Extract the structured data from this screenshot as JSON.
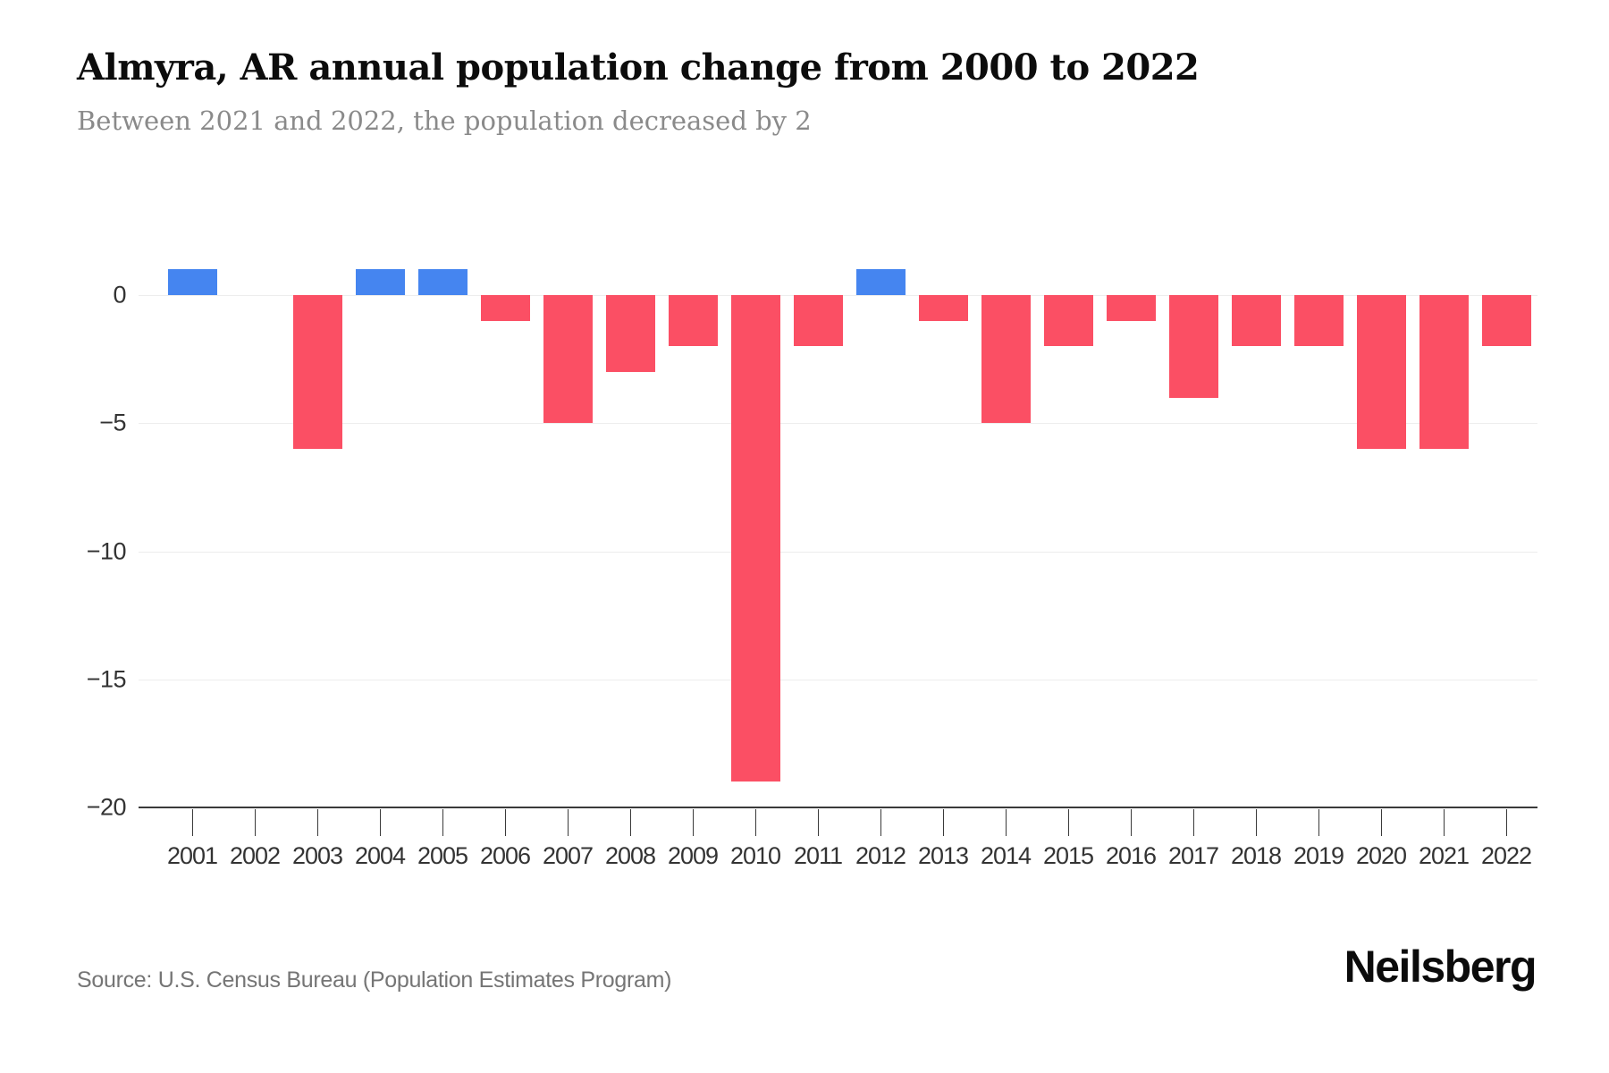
{
  "header": {
    "title": "Almyra, AR annual population change from 2000 to 2022",
    "subtitle": "Between 2021 and 2022, the population decreased by 2"
  },
  "footer": {
    "source": "Source: U.S. Census Bureau (Population Estimates Program)",
    "brand": "Neilsberg"
  },
  "colors": {
    "increase_blue": "#4585F0",
    "decrease_red": "#FB4F64",
    "grid": "#ededed",
    "axis": "#3a3a3a",
    "tick_label": "#333333",
    "subtitle_gray": "#8a8a8a",
    "source_gray": "#757575"
  },
  "chart_data": {
    "type": "bar",
    "title": "Almyra, AR annual population change from 2000 to 2022",
    "subtitle": "Between 2021 and 2022, the population decreased by 2",
    "xlabel": "",
    "ylabel": "",
    "categories": [
      2001,
      2002,
      2003,
      2004,
      2005,
      2006,
      2007,
      2008,
      2009,
      2010,
      2011,
      2012,
      2013,
      2014,
      2015,
      2016,
      2017,
      2018,
      2019,
      2020,
      2021,
      2022
    ],
    "values": [
      1,
      0,
      -6,
      1,
      1,
      -1,
      -5,
      -3,
      -2,
      -19,
      -2,
      1,
      -1,
      -5,
      -2,
      -1,
      -4,
      -2,
      -2,
      -6,
      -6,
      -2
    ],
    "ylim": [
      -20,
      3.5
    ],
    "yticks": [
      0,
      -5,
      -10,
      -15,
      -20
    ],
    "grid": true,
    "legend": false,
    "positive_color": "#4585F0",
    "negative_color": "#FB4F64"
  }
}
